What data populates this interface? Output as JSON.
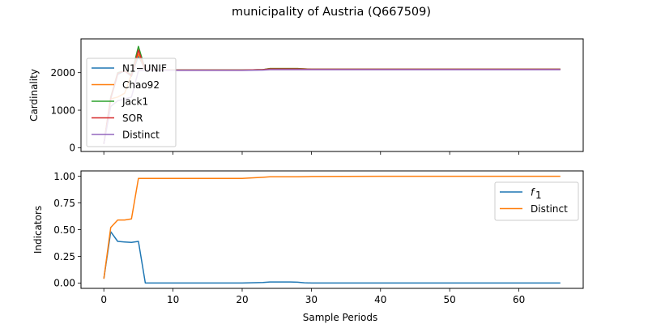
{
  "figure": {
    "title": "municipality of Austria (Q667509)"
  },
  "chart_data": [
    {
      "type": "line",
      "ylabel": "Cardinality",
      "xlabel": "",
      "xlim": [
        -3.3,
        69.3
      ],
      "ylim": [
        -100,
        2900
      ],
      "xticks": [
        0,
        10,
        20,
        30,
        40,
        50,
        60
      ],
      "yticks": [
        0,
        1000,
        2000
      ],
      "xtick_labels_visible": false,
      "legend_location": "upper-left",
      "grid": false,
      "series": [
        {
          "name": "N1−UNIF",
          "color": "#1f77b4",
          "x": [
            0,
            1,
            2,
            3,
            4,
            5,
            6,
            10,
            20,
            23,
            24,
            28,
            30,
            40,
            50,
            60,
            66
          ],
          "y": [
            100,
            1300,
            1950,
            2050,
            1900,
            2450,
            2070,
            2070,
            2070,
            2080,
            2090,
            2090,
            2090,
            2090,
            2090,
            2090,
            2090
          ]
        },
        {
          "name": "Chao92",
          "color": "#ff7f0e",
          "x": [
            0,
            1,
            2,
            3,
            4,
            5,
            6,
            10,
            20,
            23,
            24,
            28,
            30,
            40,
            50,
            60,
            66
          ],
          "y": [
            100,
            1300,
            1350,
            1450,
            1950,
            2500,
            2070,
            2070,
            2070,
            2080,
            2110,
            2110,
            2090,
            2090,
            2090,
            2090,
            2090
          ]
        },
        {
          "name": "Jack1",
          "color": "#2ca02c",
          "x": [
            0,
            1,
            2,
            3,
            4,
            5,
            6,
            10,
            20,
            23,
            24,
            28,
            30,
            40,
            50,
            60,
            66
          ],
          "y": [
            100,
            1350,
            2000,
            2050,
            1950,
            2700,
            2080,
            2070,
            2070,
            2080,
            2110,
            2110,
            2090,
            2090,
            2090,
            2090,
            2090
          ]
        },
        {
          "name": "SOR",
          "color": "#d62728",
          "x": [
            0,
            1,
            2,
            3,
            4,
            5,
            6,
            10,
            20,
            23,
            24,
            28,
            30,
            40,
            50,
            60,
            66
          ],
          "y": [
            100,
            1320,
            1980,
            2050,
            1920,
            2600,
            2075,
            2070,
            2070,
            2080,
            2100,
            2100,
            2090,
            2090,
            2090,
            2090,
            2090
          ]
        },
        {
          "name": "Distinct",
          "color": "#9467bd",
          "x": [
            0,
            1,
            2,
            3,
            4,
            5,
            6,
            10,
            20,
            23,
            24,
            28,
            30,
            40,
            50,
            60,
            66
          ],
          "y": [
            100,
            1100,
            1250,
            1300,
            1350,
            2050,
            2060,
            2060,
            2060,
            2070,
            2080,
            2080,
            2080,
            2080,
            2080,
            2080,
            2080
          ]
        }
      ]
    },
    {
      "type": "line",
      "ylabel": "Indicators",
      "xlabel": "Sample Periods",
      "xlim": [
        -3.3,
        69.3
      ],
      "ylim": [
        -0.05,
        1.05
      ],
      "xticks": [
        0,
        10,
        20,
        30,
        40,
        50,
        60
      ],
      "yticks": [
        0.0,
        0.25,
        0.5,
        0.75,
        1.0
      ],
      "ytick_labels": [
        "0.00",
        "0.25",
        "0.50",
        "0.75",
        "1.00"
      ],
      "xtick_labels_visible": true,
      "legend_location": "upper-right",
      "grid": false,
      "series": [
        {
          "name": "f1",
          "legend_label_main": "f",
          "legend_label_sub": "1",
          "color": "#1f77b4",
          "x": [
            0,
            1,
            2,
            3,
            4,
            5,
            6,
            10,
            20,
            23,
            24,
            27,
            28,
            29,
            30,
            40,
            50,
            60,
            66
          ],
          "y": [
            0.04,
            0.48,
            0.39,
            0.385,
            0.38,
            0.39,
            0.0,
            0.0,
            0.0,
            0.005,
            0.01,
            0.01,
            0.008,
            0.002,
            0.0,
            0.0,
            0.0,
            0.0,
            0.0
          ]
        },
        {
          "name": "Distinct",
          "color": "#ff7f0e",
          "x": [
            0,
            1,
            2,
            3,
            4,
            5,
            6,
            10,
            20,
            23,
            24,
            28,
            30,
            40,
            50,
            60,
            66
          ],
          "y": [
            0.04,
            0.52,
            0.59,
            0.59,
            0.6,
            0.98,
            0.98,
            0.98,
            0.98,
            0.99,
            0.995,
            0.995,
            0.998,
            1.0,
            1.0,
            1.0,
            1.0
          ]
        }
      ]
    }
  ]
}
